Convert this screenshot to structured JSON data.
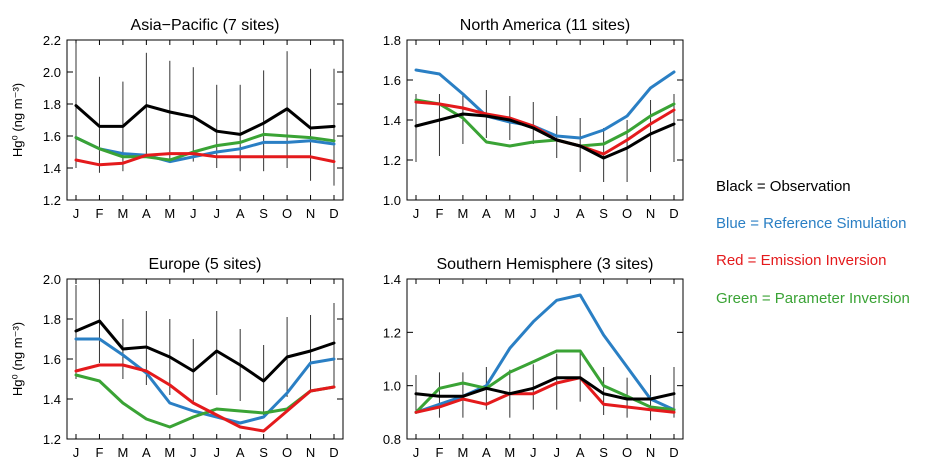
{
  "figure": {
    "legend": [
      {
        "text": "Black = Observation",
        "color": "#000000"
      },
      {
        "text": "Blue = Reference Simulation",
        "color": "#2a7fc4"
      },
      {
        "text": "Red = Emission Inversion",
        "color": "#e41a1c"
      },
      {
        "text": "Green = Parameter Inversion",
        "color": "#3aa335"
      }
    ]
  },
  "chart_data": [
    {
      "type": "line",
      "title": "Asia−Pacific (7 sites)",
      "ylabel": "Hg⁰ (ng m⁻³)",
      "categories": [
        "J",
        "F",
        "M",
        "A",
        "M",
        "J",
        "J",
        "A",
        "S",
        "O",
        "N",
        "D"
      ],
      "ylim": [
        1.2,
        2.2
      ],
      "yticks": [
        1.2,
        1.4,
        1.6,
        1.8,
        2.0,
        2.2
      ],
      "ytick_labels": [
        "1.2",
        "1.4",
        "1.6",
        "1.8",
        "2.0",
        "2.2"
      ],
      "error_bars": {
        "low": [
          1.4,
          1.37,
          1.38,
          1.47,
          1.45,
          1.44,
          1.4,
          1.38,
          1.38,
          1.4,
          1.32,
          1.29
        ],
        "high": [
          2.18,
          1.97,
          1.94,
          2.12,
          2.07,
          2.03,
          1.92,
          1.92,
          2.01,
          2.13,
          2.02,
          2.02
        ]
      },
      "series": [
        {
          "color": "#000000",
          "values": [
            1.79,
            1.66,
            1.66,
            1.79,
            1.75,
            1.72,
            1.63,
            1.61,
            1.68,
            1.77,
            1.65,
            1.66
          ]
        },
        {
          "color": "#2a7fc4",
          "values": [
            1.59,
            1.52,
            1.49,
            1.48,
            1.44,
            1.47,
            1.5,
            1.52,
            1.56,
            1.56,
            1.57,
            1.55
          ]
        },
        {
          "color": "#e41a1c",
          "values": [
            1.45,
            1.42,
            1.43,
            1.48,
            1.49,
            1.49,
            1.47,
            1.47,
            1.47,
            1.47,
            1.47,
            1.44
          ]
        },
        {
          "color": "#3aa335",
          "values": [
            1.59,
            1.52,
            1.47,
            1.47,
            1.45,
            1.5,
            1.54,
            1.56,
            1.61,
            1.6,
            1.59,
            1.57
          ]
        }
      ]
    },
    {
      "type": "line",
      "title": "North America (11 sites)",
      "ylabel": "",
      "categories": [
        "J",
        "F",
        "M",
        "A",
        "M",
        "J",
        "J",
        "A",
        "S",
        "O",
        "N",
        "D"
      ],
      "ylim": [
        1.0,
        1.8
      ],
      "yticks": [
        1.0,
        1.2,
        1.4,
        1.6,
        1.8
      ],
      "ytick_labels": [
        "1.0",
        "1.2",
        "1.4",
        "1.6",
        "1.8"
      ],
      "error_bars": {
        "low": [
          1.19,
          1.22,
          1.28,
          1.31,
          1.3,
          1.28,
          1.21,
          1.14,
          1.09,
          1.09,
          1.14,
          1.19
        ],
        "high": [
          1.53,
          1.53,
          1.53,
          1.55,
          1.52,
          1.49,
          1.42,
          1.41,
          1.36,
          1.4,
          1.5,
          1.53
        ]
      },
      "series": [
        {
          "color": "#000000",
          "values": [
            1.37,
            1.4,
            1.43,
            1.42,
            1.4,
            1.36,
            1.3,
            1.27,
            1.21,
            1.26,
            1.33,
            1.38
          ]
        },
        {
          "color": "#2a7fc4",
          "values": [
            1.65,
            1.63,
            1.53,
            1.42,
            1.39,
            1.37,
            1.32,
            1.31,
            1.35,
            1.42,
            1.56,
            1.64
          ]
        },
        {
          "color": "#e41a1c",
          "values": [
            1.49,
            1.48,
            1.46,
            1.43,
            1.41,
            1.37,
            1.3,
            1.27,
            1.23,
            1.3,
            1.38,
            1.45
          ]
        },
        {
          "color": "#3aa335",
          "values": [
            1.5,
            1.48,
            1.41,
            1.29,
            1.27,
            1.29,
            1.3,
            1.27,
            1.28,
            1.34,
            1.42,
            1.48
          ]
        }
      ]
    },
    {
      "type": "line",
      "title": "Europe (5 sites)",
      "ylabel": "Hg⁰ (ng m⁻³)",
      "categories": [
        "J",
        "F",
        "M",
        "A",
        "M",
        "J",
        "J",
        "A",
        "S",
        "O",
        "N",
        "D"
      ],
      "ylim": [
        1.2,
        2.0
      ],
      "yticks": [
        1.2,
        1.4,
        1.6,
        1.8,
        2.0
      ],
      "ytick_labels": [
        "1.2",
        "1.4",
        "1.6",
        "1.8",
        "2.0"
      ],
      "error_bars": {
        "low": [
          1.5,
          1.58,
          1.5,
          1.47,
          1.42,
          1.38,
          1.42,
          1.39,
          1.32,
          1.41,
          1.44,
          1.46
        ],
        "high": [
          1.97,
          2.0,
          1.8,
          1.84,
          1.8,
          1.7,
          1.84,
          1.75,
          1.67,
          1.81,
          1.82,
          1.88
        ]
      },
      "series": [
        {
          "color": "#000000",
          "values": [
            1.74,
            1.79,
            1.65,
            1.66,
            1.61,
            1.54,
            1.64,
            1.57,
            1.49,
            1.61,
            1.64,
            1.68
          ]
        },
        {
          "color": "#2a7fc4",
          "values": [
            1.7,
            1.7,
            1.62,
            1.53,
            1.38,
            1.34,
            1.31,
            1.28,
            1.31,
            1.43,
            1.58,
            1.6
          ]
        },
        {
          "color": "#e41a1c",
          "values": [
            1.54,
            1.57,
            1.57,
            1.54,
            1.47,
            1.38,
            1.32,
            1.26,
            1.24,
            1.34,
            1.44,
            1.46
          ]
        },
        {
          "color": "#3aa335",
          "values": [
            1.52,
            1.49,
            1.38,
            1.3,
            1.26,
            1.31,
            1.35,
            1.34,
            1.33,
            1.35,
            1.44,
            1.46
          ]
        }
      ]
    },
    {
      "type": "line",
      "title": "Southern Hemisphere (3 sites)",
      "ylabel": "",
      "categories": [
        "J",
        "F",
        "M",
        "A",
        "M",
        "J",
        "J",
        "A",
        "S",
        "O",
        "N",
        "D"
      ],
      "ylim": [
        0.8,
        1.4
      ],
      "yticks": [
        0.8,
        1.0,
        1.2,
        1.4
      ],
      "ytick_labels": [
        "0.8",
        "1.0",
        "1.2",
        "1.4"
      ],
      "error_bars": {
        "low": [
          0.9,
          0.88,
          0.88,
          0.91,
          0.88,
          0.91,
          0.91,
          0.94,
          0.89,
          0.88,
          0.87,
          0.88
        ],
        "high": [
          1.04,
          1.05,
          1.05,
          1.07,
          1.06,
          1.08,
          1.12,
          1.13,
          1.07,
          1.03,
          1.04,
          1.07
        ]
      },
      "series": [
        {
          "color": "#000000",
          "values": [
            0.97,
            0.96,
            0.96,
            0.99,
            0.97,
            0.99,
            1.03,
            1.03,
            0.97,
            0.95,
            0.95,
            0.97
          ]
        },
        {
          "color": "#2a7fc4",
          "values": [
            0.9,
            0.93,
            0.96,
            1.0,
            1.14,
            1.24,
            1.32,
            1.34,
            1.19,
            1.07,
            0.95,
            0.91
          ]
        },
        {
          "color": "#e41a1c",
          "values": [
            0.9,
            0.92,
            0.95,
            0.93,
            0.97,
            0.97,
            1.01,
            1.03,
            0.93,
            0.92,
            0.91,
            0.9
          ]
        },
        {
          "color": "#3aa335",
          "values": [
            0.9,
            0.99,
            1.01,
            0.99,
            1.05,
            1.09,
            1.13,
            1.13,
            1.0,
            0.96,
            0.92,
            0.91
          ]
        }
      ]
    }
  ]
}
